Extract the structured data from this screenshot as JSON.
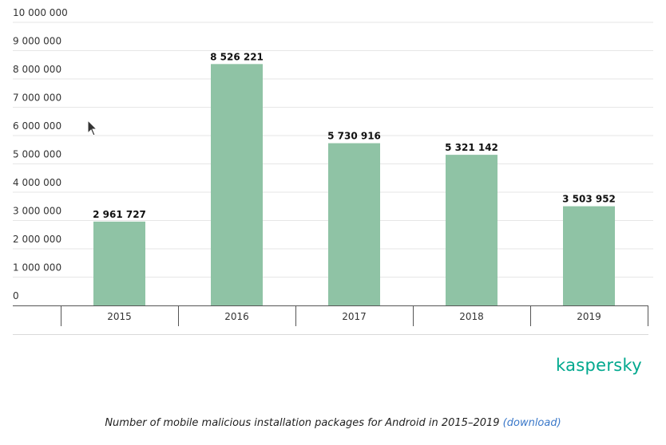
{
  "chart_data": {
    "type": "bar",
    "categories": [
      "2015",
      "2016",
      "2017",
      "2018",
      "2019"
    ],
    "values": [
      2961727,
      8526221,
      5730916,
      5321142,
      3503952
    ],
    "value_labels": [
      "2 961 727",
      "8 526 221",
      "5 730 916",
      "5 321 142",
      "3 503 952"
    ],
    "ylim": [
      0,
      10000000
    ],
    "yticks": [
      0,
      1000000,
      2000000,
      3000000,
      4000000,
      5000000,
      6000000,
      7000000,
      8000000,
      9000000,
      10000000
    ],
    "ytick_labels": [
      "0",
      "1 000 000",
      "2 000 000",
      "3 000 000",
      "4 000 000",
      "5 000 000",
      "6 000 000",
      "7 000 000",
      "8 000 000",
      "9 000 000",
      "10 000 000"
    ],
    "grid": true,
    "bar_color": "#8fc3a5",
    "title": "",
    "xlabel": "",
    "ylabel": ""
  },
  "brand": {
    "name": "kaspersky",
    "color": "#00a88e"
  },
  "caption": {
    "text": "Number of mobile malicious installation packages for Android in 2015–2019",
    "link_label": "(download)"
  }
}
